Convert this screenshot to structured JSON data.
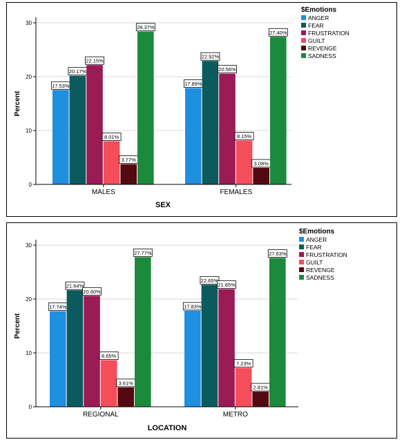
{
  "colors": {
    "ANGER": "#1f8fe0",
    "FEAR": "#0b5a5e",
    "FRUSTRATION": "#9b1b54",
    "GUILT": "#f34e5a",
    "REVENGE": "#520a10",
    "SADNESS": "#1b8a3c"
  },
  "chart_data": [
    {
      "type": "bar",
      "xlabel": "SEX",
      "ylabel": "Percent",
      "ylim": [
        0,
        30
      ],
      "yticks": [
        "0",
        "10",
        "20",
        "30"
      ],
      "grid": true,
      "legend_position": "top-right",
      "legend_title": "$Emotions",
      "categories": [
        "MALES",
        "FEMALES"
      ],
      "series": [
        {
          "name": "ANGER",
          "values": [
            17.53,
            17.89
          ],
          "labels": [
            "17.53%",
            "17.89%"
          ]
        },
        {
          "name": "FEAR",
          "values": [
            20.17,
            22.92
          ],
          "labels": [
            "20.17%",
            "22.92%"
          ]
        },
        {
          "name": "FRUSTRATION",
          "values": [
            22.15,
            20.56
          ],
          "labels": [
            "22.15%",
            "20.56%"
          ]
        },
        {
          "name": "GUILT",
          "values": [
            8.01,
            8.15
          ],
          "labels": [
            "8.01%",
            "8.15%"
          ]
        },
        {
          "name": "REVENGE",
          "values": [
            3.77,
            3.08
          ],
          "labels": [
            "3.77%",
            "3.08%"
          ]
        },
        {
          "name": "SADNESS",
          "values": [
            28.37,
            27.4
          ],
          "labels": [
            "28.37%",
            "27.40%"
          ]
        }
      ]
    },
    {
      "type": "bar",
      "xlabel": "LOCATION",
      "ylabel": "Percent",
      "ylim": [
        0,
        30
      ],
      "yticks": [
        "0",
        "10",
        "20",
        "30"
      ],
      "grid": true,
      "legend_position": "top-right",
      "legend_title": "$Emotions",
      "categories": [
        "REGIONAL",
        "METRO"
      ],
      "series": [
        {
          "name": "ANGER",
          "values": [
            17.74,
            17.83
          ],
          "labels": [
            "17.74%",
            "17.83%"
          ]
        },
        {
          "name": "FEAR",
          "values": [
            21.64,
            22.65
          ],
          "labels": [
            "21.64%",
            "22.65%"
          ]
        },
        {
          "name": "FRUSTRATION",
          "values": [
            20.6,
            21.85
          ],
          "labels": [
            "20.60%",
            "21.85%"
          ]
        },
        {
          "name": "GUILT",
          "values": [
            8.65,
            7.23
          ],
          "labels": [
            "8.65%",
            "7.23%"
          ]
        },
        {
          "name": "REVENGE",
          "values": [
            3.61,
            2.81
          ],
          "labels": [
            "3.61%",
            "2.81%"
          ]
        },
        {
          "name": "SADNESS",
          "values": [
            27.77,
            27.63
          ],
          "labels": [
            "27.77%",
            "27.63%"
          ]
        }
      ]
    }
  ]
}
